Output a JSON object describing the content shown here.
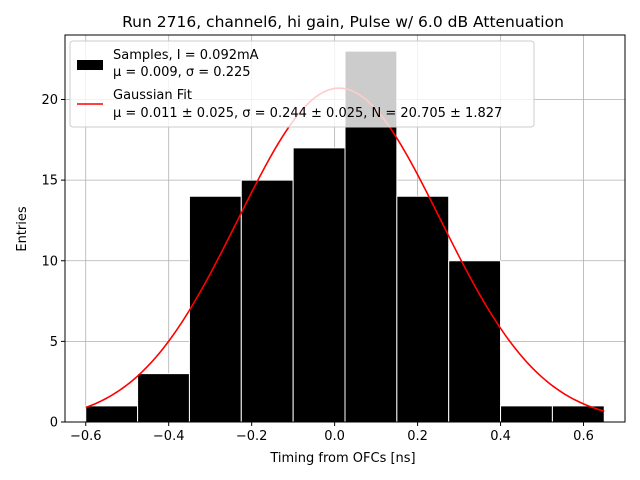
{
  "chart_data": {
    "type": "bar",
    "title": "Run 2716, channel6, hi gain, Pulse w/ 6.0 dB Attenuation",
    "xlabel": "Timing from OFCs [ns]",
    "ylabel": "Entries",
    "xlim": [
      -0.65,
      0.7
    ],
    "ylim": [
      0,
      24
    ],
    "x_ticks": [
      -0.6,
      -0.4,
      -0.2,
      0.0,
      0.2,
      0.4,
      0.6
    ],
    "x_tick_labels": [
      "−0.6",
      "−0.4",
      "−0.2",
      "0.0",
      "0.2",
      "0.4",
      "0.6"
    ],
    "y_ticks": [
      0,
      5,
      10,
      15,
      20
    ],
    "y_tick_labels": [
      "0",
      "5",
      "10",
      "15",
      "20"
    ],
    "grid": true,
    "histogram": {
      "name": "Samples",
      "bin_edges": [
        -0.6,
        -0.475,
        -0.35,
        -0.225,
        -0.1,
        0.025,
        0.15,
        0.275,
        0.4,
        0.525,
        0.65
      ],
      "counts": [
        1,
        3,
        14,
        15,
        17,
        23,
        14,
        10,
        1,
        1
      ],
      "color": "#000000",
      "edge_color": "#ffffff"
    },
    "fit": {
      "name": "Gaussian Fit",
      "mu": 0.011,
      "sigma": 0.244,
      "N": 20.705,
      "x_range": [
        -0.6,
        0.65
      ],
      "color": "#ff0000"
    },
    "overlay": {
      "color": "#c8c8c8",
      "value": 23,
      "x_range": [
        0.025,
        0.15
      ]
    },
    "legend": {
      "position": "top-left",
      "entries": [
        {
          "line1": "Samples, I = 0.092mA",
          "line2": "μ = 0.009, σ = 0.225",
          "marker": "patch",
          "color": "#000000"
        },
        {
          "line1": "Gaussian Fit",
          "line2": "μ = 0.011 ± 0.025, σ = 0.244 ± 0.025, N = 20.705 ± 1.827",
          "marker": "line",
          "color": "#ff0000"
        }
      ]
    }
  }
}
